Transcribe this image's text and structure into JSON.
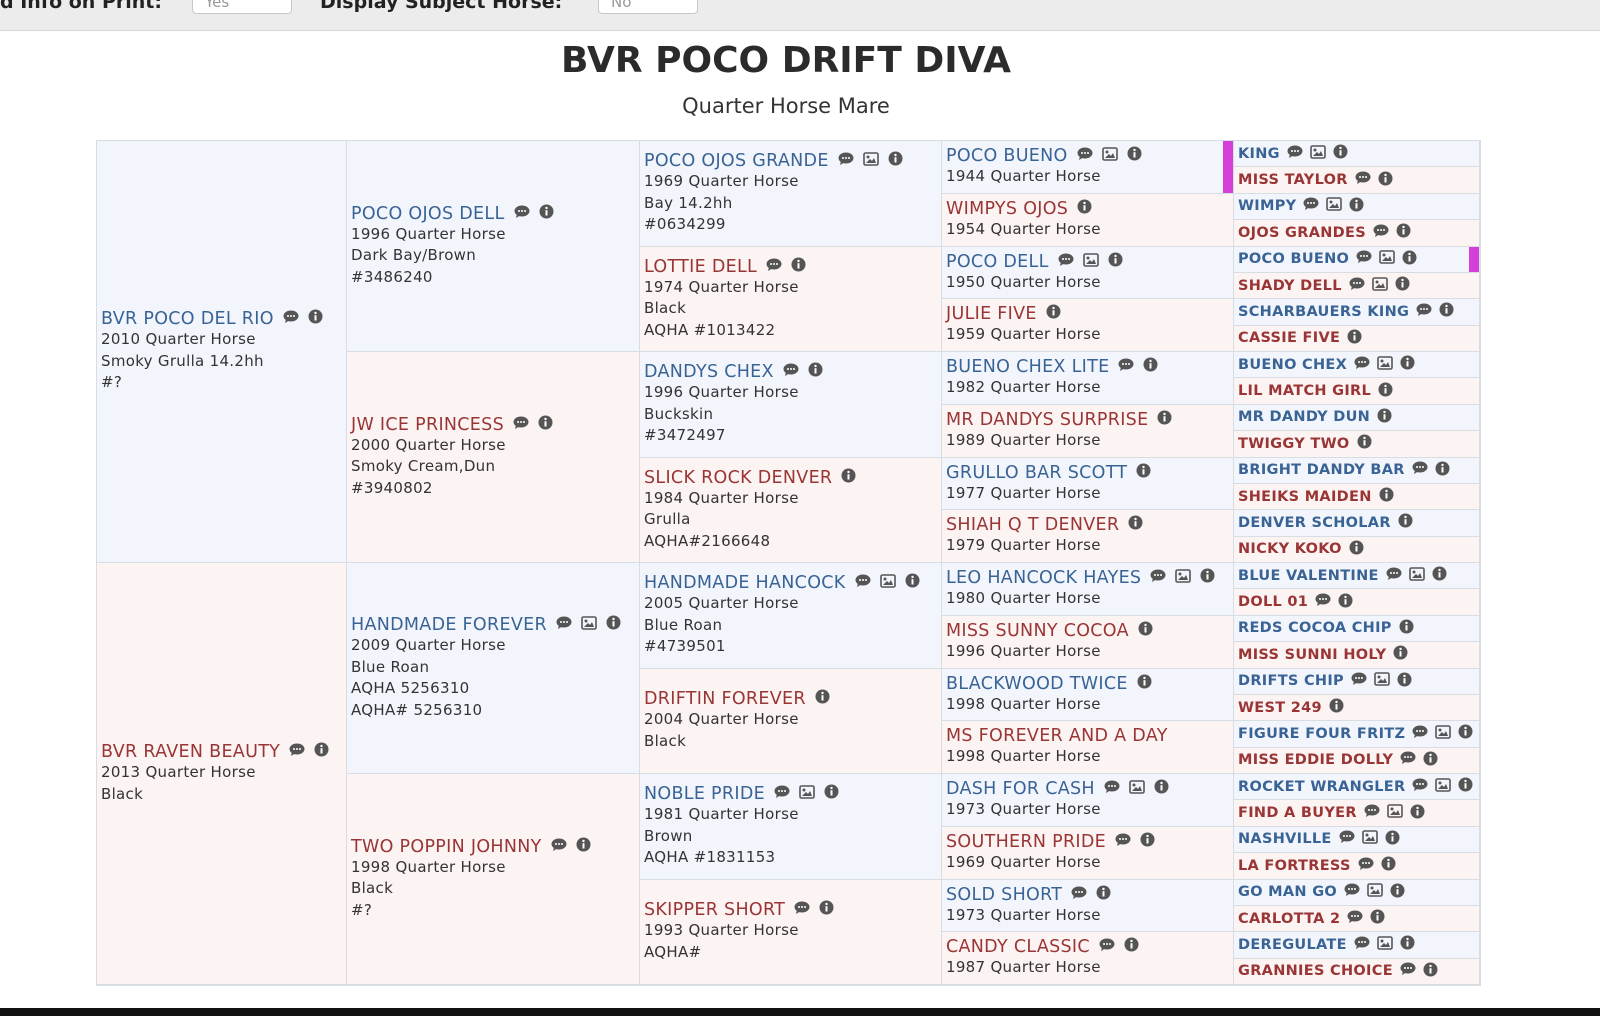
{
  "toolbar": {
    "fields": [
      {
        "label": "d Info on Print:",
        "value": "Yes"
      },
      {
        "label": "Display Subject Horse:",
        "value": "No"
      }
    ]
  },
  "header": {
    "title": "BVR POCO DRIFT DIVA",
    "subtitle": "Quarter Horse Mare"
  },
  "generations": [
    {
      "horses": [
        {
          "name": "BVR POCO DEL RIO",
          "icons": [
            "comment",
            "info"
          ],
          "lines": [
            "2010 Quarter Horse",
            "Smoky Grulla 14.2hh",
            "#?"
          ]
        },
        {
          "name": "BVR RAVEN BEAUTY",
          "icons": [
            "comment",
            "info"
          ],
          "lines": [
            "2013 Quarter Horse",
            "Black"
          ]
        }
      ]
    },
    {
      "horses": [
        {
          "name": "POCO OJOS DELL",
          "icons": [
            "comment",
            "info"
          ],
          "lines": [
            "1996 Quarter Horse",
            "Dark Bay/Brown",
            "#3486240"
          ]
        },
        {
          "name": "JW ICE PRINCESS",
          "icons": [
            "comment",
            "info"
          ],
          "lines": [
            "2000 Quarter Horse",
            "Smoky Cream,Dun",
            "#3940802"
          ]
        },
        {
          "name": "HANDMADE FOREVER",
          "icons": [
            "comment",
            "image",
            "info"
          ],
          "lines": [
            "2009 Quarter Horse",
            "Blue Roan",
            "AQHA 5256310",
            "AQHA# 5256310"
          ]
        },
        {
          "name": "TWO POPPIN JOHNNY",
          "icons": [
            "comment",
            "info"
          ],
          "lines": [
            "1998 Quarter Horse",
            "Black",
            "#?"
          ]
        }
      ]
    },
    {
      "horses": [
        {
          "name": "POCO OJOS GRANDE",
          "icons": [
            "comment",
            "image",
            "info"
          ],
          "lines": [
            "1969 Quarter Horse",
            "Bay 14.2hh",
            "#0634299"
          ]
        },
        {
          "name": "LOTTIE DELL",
          "icons": [
            "comment",
            "info"
          ],
          "lines": [
            "1974 Quarter Horse",
            "Black",
            "AQHA #1013422"
          ]
        },
        {
          "name": "DANDYS CHEX",
          "icons": [
            "comment",
            "info"
          ],
          "lines": [
            "1996 Quarter Horse",
            "Buckskin",
            "#3472497"
          ]
        },
        {
          "name": "SLICK ROCK DENVER",
          "icons": [
            "info"
          ],
          "lines": [
            "1984 Quarter Horse",
            "Grulla",
            "AQHA#2166648"
          ]
        },
        {
          "name": "HANDMADE HANCOCK",
          "icons": [
            "comment",
            "image",
            "info"
          ],
          "lines": [
            "2005 Quarter Horse",
            "Blue Roan",
            "#4739501"
          ]
        },
        {
          "name": "DRIFTIN FOREVER",
          "icons": [
            "info"
          ],
          "lines": [
            "2004 Quarter Horse",
            "Black"
          ]
        },
        {
          "name": "NOBLE PRIDE",
          "icons": [
            "comment",
            "image",
            "info"
          ],
          "lines": [
            "1981 Quarter Horse",
            "Brown",
            "AQHA #1831153"
          ]
        },
        {
          "name": "SKIPPER SHORT",
          "icons": [
            "comment",
            "info"
          ],
          "lines": [
            "1993 Quarter Horse",
            "AQHA#"
          ]
        }
      ]
    },
    {
      "horses": [
        {
          "name": "POCO BUENO",
          "icons": [
            "comment",
            "image",
            "info"
          ],
          "lines": [
            "1944 Quarter Horse"
          ],
          "highlight": true
        },
        {
          "name": "WIMPYS OJOS",
          "icons": [
            "info"
          ],
          "lines": [
            "1954 Quarter Horse"
          ]
        },
        {
          "name": "POCO DELL",
          "icons": [
            "comment",
            "image",
            "info"
          ],
          "lines": [
            "1950 Quarter Horse"
          ]
        },
        {
          "name": "JULIE FIVE",
          "icons": [
            "info"
          ],
          "lines": [
            "1959 Quarter Horse"
          ]
        },
        {
          "name": "BUENO CHEX LITE",
          "icons": [
            "comment",
            "info"
          ],
          "lines": [
            "1982 Quarter Horse"
          ]
        },
        {
          "name": "MR DANDYS SURPRISE",
          "icons": [
            "info"
          ],
          "lines": [
            "1989 Quarter Horse"
          ]
        },
        {
          "name": "GRULLO BAR SCOTT",
          "icons": [
            "info"
          ],
          "lines": [
            "1977 Quarter Horse"
          ]
        },
        {
          "name": "SHIAH Q T DENVER",
          "icons": [
            "info"
          ],
          "lines": [
            "1979 Quarter Horse"
          ]
        },
        {
          "name": "LEO HANCOCK HAYES",
          "icons": [
            "comment",
            "image",
            "info"
          ],
          "lines": [
            "1980 Quarter Horse"
          ]
        },
        {
          "name": "MISS SUNNY COCOA",
          "icons": [
            "info"
          ],
          "lines": [
            "1996 Quarter Horse"
          ]
        },
        {
          "name": "BLACKWOOD TWICE",
          "icons": [
            "info"
          ],
          "lines": [
            "1998 Quarter Horse"
          ]
        },
        {
          "name": "MS FOREVER AND A DAY",
          "icons": [],
          "lines": [
            "1998 Quarter Horse"
          ]
        },
        {
          "name": "DASH FOR CASH",
          "icons": [
            "comment",
            "image",
            "info"
          ],
          "lines": [
            "1973 Quarter Horse"
          ]
        },
        {
          "name": "SOUTHERN PRIDE",
          "icons": [
            "comment",
            "info"
          ],
          "lines": [
            "1969 Quarter Horse"
          ]
        },
        {
          "name": "SOLD SHORT",
          "icons": [
            "comment",
            "info"
          ],
          "lines": [
            "1973 Quarter Horse"
          ]
        },
        {
          "name": "CANDY CLASSIC",
          "icons": [
            "comment",
            "info"
          ],
          "lines": [
            "1987 Quarter Horse"
          ]
        }
      ]
    },
    {
      "horses": [
        {
          "name": "KING",
          "icons": [
            "comment",
            "image",
            "info"
          ]
        },
        {
          "name": "MISS TAYLOR",
          "icons": [
            "comment",
            "info"
          ]
        },
        {
          "name": "WIMPY",
          "icons": [
            "comment",
            "image",
            "info"
          ]
        },
        {
          "name": "OJOS GRANDES",
          "icons": [
            "comment",
            "info"
          ]
        },
        {
          "name": "POCO BUENO",
          "icons": [
            "comment",
            "image",
            "info"
          ],
          "highlight": true
        },
        {
          "name": "SHADY DELL",
          "icons": [
            "comment",
            "image",
            "info"
          ]
        },
        {
          "name": "SCHARBAUERS KING",
          "icons": [
            "comment",
            "info"
          ]
        },
        {
          "name": "CASSIE FIVE",
          "icons": [
            "info"
          ]
        },
        {
          "name": "BUENO CHEX",
          "icons": [
            "comment",
            "image",
            "info"
          ]
        },
        {
          "name": "LIL MATCH GIRL",
          "icons": [
            "info"
          ]
        },
        {
          "name": "MR DANDY DUN",
          "icons": [
            "info"
          ]
        },
        {
          "name": "TWIGGY TWO",
          "icons": [
            "info"
          ]
        },
        {
          "name": "BRIGHT DANDY BAR",
          "icons": [
            "comment",
            "info"
          ]
        },
        {
          "name": "SHEIKS MAIDEN",
          "icons": [
            "info"
          ]
        },
        {
          "name": "DENVER SCHOLAR",
          "icons": [
            "info"
          ]
        },
        {
          "name": "NICKY KOKO",
          "icons": [
            "info"
          ]
        },
        {
          "name": "BLUE VALENTINE",
          "icons": [
            "comment",
            "image",
            "info"
          ]
        },
        {
          "name": "DOLL 01",
          "icons": [
            "comment",
            "info"
          ]
        },
        {
          "name": "REDS COCOA CHIP",
          "icons": [
            "info"
          ]
        },
        {
          "name": "MISS SUNNI HOLY",
          "icons": [
            "info"
          ]
        },
        {
          "name": "DRIFTS CHIP",
          "icons": [
            "comment",
            "image",
            "info"
          ]
        },
        {
          "name": "WEST 249",
          "icons": [
            "info"
          ]
        },
        {
          "name": "FIGURE FOUR FRITZ",
          "icons": [
            "comment",
            "image",
            "info"
          ]
        },
        {
          "name": "MISS EDDIE DOLLY",
          "icons": [
            "comment",
            "info"
          ]
        },
        {
          "name": "ROCKET WRANGLER",
          "icons": [
            "comment",
            "image",
            "info"
          ]
        },
        {
          "name": "FIND A BUYER",
          "icons": [
            "comment",
            "image",
            "info"
          ]
        },
        {
          "name": "NASHVILLE",
          "icons": [
            "comment",
            "image",
            "info"
          ]
        },
        {
          "name": "LA FORTRESS",
          "icons": [
            "comment",
            "info"
          ]
        },
        {
          "name": "GO MAN GO",
          "icons": [
            "comment",
            "image",
            "info"
          ]
        },
        {
          "name": "CARLOTTA 2",
          "icons": [
            "comment",
            "info"
          ]
        },
        {
          "name": "DEREGULATE",
          "icons": [
            "comment",
            "image",
            "info"
          ]
        },
        {
          "name": "GRANNIES CHOICE",
          "icons": [
            "comment",
            "info"
          ]
        }
      ]
    }
  ]
}
